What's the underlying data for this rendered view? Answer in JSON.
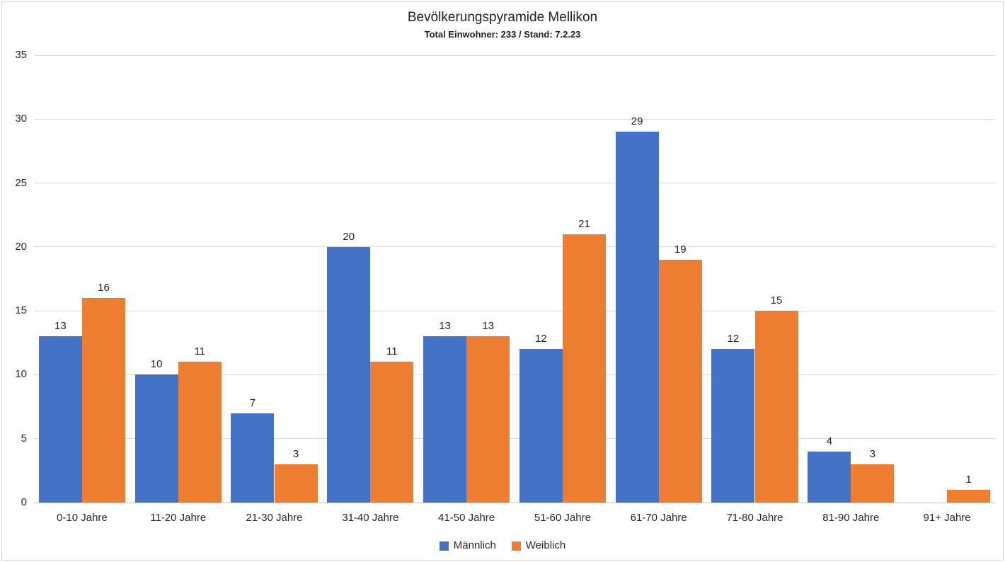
{
  "page": {
    "background_color": "#ffffff",
    "frame_border_color": "#d6d6d6"
  },
  "chart_data": {
    "type": "bar",
    "title": "Bevölkerungspyramide Mellikon",
    "subtitle": "Total Einwohner: 233 / Stand: 7.2.23",
    "categories": [
      "0-10 Jahre",
      "11-20 Jahre",
      "21-30 Jahre",
      "31-40 Jahre",
      "41-50 Jahre",
      "51-60 Jahre",
      "61-70 Jahre",
      "71-80 Jahre",
      "81-90 Jahre",
      "91+ Jahre"
    ],
    "series": [
      {
        "name": "Männlich",
        "color": "#4472C4",
        "values": [
          13,
          10,
          7,
          20,
          13,
          12,
          29,
          12,
          4,
          0
        ]
      },
      {
        "name": "Weiblich",
        "color": "#ED7D31",
        "values": [
          16,
          11,
          3,
          11,
          13,
          21,
          19,
          15,
          3,
          1
        ]
      }
    ],
    "xlabel": "",
    "ylabel": "",
    "ylim": [
      0,
      35
    ],
    "yticks": [
      0,
      5,
      10,
      15,
      20,
      25,
      30,
      35
    ],
    "grid": true,
    "data_labels": true,
    "zero_values_hidden": true,
    "legend_position": "bottom",
    "colors": {
      "gridline": "#d9d9d9",
      "axis_line": "#c9c9c9",
      "text": "#262626"
    }
  }
}
